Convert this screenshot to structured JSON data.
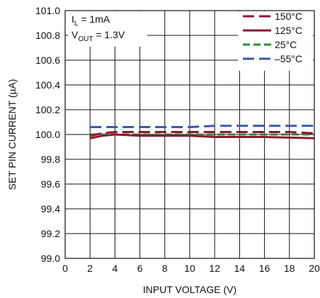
{
  "chart_data": {
    "type": "line",
    "xlabel": "INPUT VOLTAGE (V)",
    "ylabel": "SET PIN CURRENT (µA)",
    "xlim": [
      0,
      20
    ],
    "ylim": [
      99.0,
      101.0
    ],
    "x_ticks": [
      "0",
      "2",
      "4",
      "6",
      "8",
      "10",
      "12",
      "14",
      "16",
      "18",
      "20"
    ],
    "y_ticks": [
      "99.0",
      "99.2",
      "99.4",
      "99.6",
      "99.8",
      "100.0",
      "100.2",
      "100.4",
      "100.6",
      "100.8",
      "101.0"
    ],
    "grid": true,
    "legend_position": "top-right",
    "annotations": {
      "line1": {
        "main": "I",
        "sub": "L",
        "rest": " = 1mA"
      },
      "line2": {
        "main": "V",
        "sub": "OUT",
        "rest": " = 1.3V"
      }
    },
    "series": [
      {
        "name": "150°C",
        "color": "#8b1a2e",
        "dash": "long-dash",
        "points": [
          [
            2,
            99.99
          ],
          [
            2.5,
            100.0
          ],
          [
            3,
            100.01
          ],
          [
            4,
            100.02
          ],
          [
            6,
            100.02
          ],
          [
            8,
            100.02
          ],
          [
            10,
            100.02
          ],
          [
            12,
            100.02
          ],
          [
            14,
            100.02
          ],
          [
            16,
            100.02
          ],
          [
            18,
            100.02
          ],
          [
            20,
            100.01
          ]
        ]
      },
      {
        "name": "125°C",
        "color": "#8b1a2e",
        "dash": "solid",
        "points": [
          [
            2,
            99.97
          ],
          [
            2.5,
            99.98
          ],
          [
            3,
            99.99
          ],
          [
            4,
            100.0
          ],
          [
            6,
            99.99
          ],
          [
            8,
            99.99
          ],
          [
            10,
            99.99
          ],
          [
            12,
            99.98
          ],
          [
            14,
            99.98
          ],
          [
            16,
            99.98
          ],
          [
            18,
            99.975
          ],
          [
            20,
            99.97
          ]
        ]
      },
      {
        "name": "25°C",
        "color": "#2e8b3a",
        "dash": "dash",
        "points": [
          [
            2,
            100.0
          ],
          [
            4,
            100.0
          ],
          [
            6,
            100.0
          ],
          [
            8,
            100.0
          ],
          [
            10,
            100.0
          ],
          [
            12,
            100.0
          ],
          [
            14,
            100.0
          ],
          [
            16,
            100.0
          ],
          [
            18,
            100.0
          ],
          [
            20,
            100.0
          ]
        ]
      },
      {
        "name": "–55°C",
        "color": "#3a5aa6",
        "dash": "long-dash",
        "points": [
          [
            2,
            100.06
          ],
          [
            4,
            100.06
          ],
          [
            6,
            100.06
          ],
          [
            8,
            100.06
          ],
          [
            10,
            100.06
          ],
          [
            12,
            100.07
          ],
          [
            14,
            100.07
          ],
          [
            16,
            100.07
          ],
          [
            18,
            100.07
          ],
          [
            20,
            100.07
          ]
        ]
      }
    ]
  }
}
